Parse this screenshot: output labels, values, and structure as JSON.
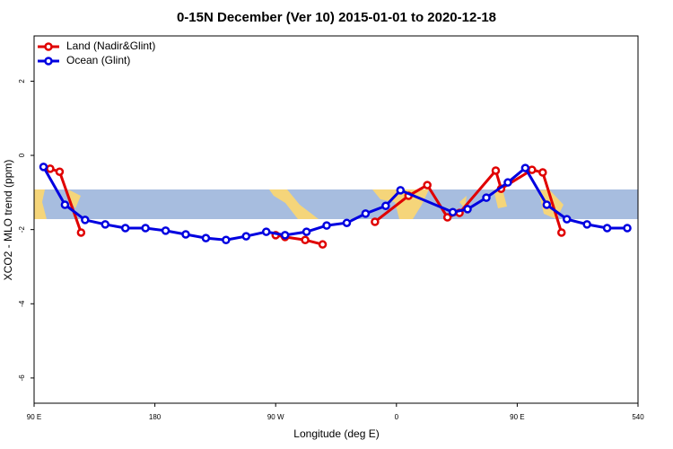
{
  "chart_data": {
    "type": "line",
    "title": "0-15N December (Ver 10)   2015-01-01 to 2020-12-18",
    "x_label": "Longitude (deg E)",
    "y_label": "XCO2 - MLO trend (ppm)",
    "xlim": [
      90,
      540
    ],
    "ylim": [
      -6.68,
      3.22
    ],
    "xticks": [
      {
        "value": 90,
        "label": "90 E"
      },
      180,
      {
        "value": 270,
        "label": "90 W"
      },
      {
        "value": 360,
        "label": "0"
      },
      {
        "value": 450,
        "label": "90 E"
      },
      540
    ],
    "yticks": [
      -6,
      -4,
      -2,
      0,
      2
    ],
    "legend": "top-left",
    "series": [
      {
        "name": "Land (Nadir&Glint)",
        "color": "#e00000",
        "x": [
          102,
          109,
          125,
          null,
          270,
          277,
          292,
          305,
          null,
          344,
          369,
          383,
          398,
          407,
          434,
          438,
          461,
          469,
          483
        ],
        "values": [
          -0.36,
          -0.44,
          -2.08,
          null,
          -2.15,
          -2.2,
          -2.28,
          -2.4,
          null,
          -1.79,
          -1.09,
          -0.8,
          -1.67,
          -1.55,
          -0.41,
          -0.9,
          -0.39,
          -0.46,
          -2.08
        ]
      },
      {
        "name": "Ocean (Glint)",
        "color": "#0000e0",
        "x": [
          97,
          113,
          128,
          143,
          158,
          173,
          188,
          203,
          218,
          233,
          248,
          263,
          277,
          293,
          308,
          323,
          337,
          352,
          363,
          402,
          413,
          427,
          443,
          456,
          472,
          487,
          502,
          517,
          532
        ],
        "values": [
          -0.31,
          -1.33,
          -1.74,
          -1.86,
          -1.96,
          -1.96,
          -2.03,
          -2.13,
          -2.23,
          -2.28,
          -2.18,
          -2.06,
          -2.15,
          -2.06,
          -1.89,
          -1.82,
          -1.57,
          -1.36,
          -0.94,
          -1.53,
          -1.45,
          -1.14,
          -0.73,
          -0.34,
          -1.33,
          -1.72,
          -1.86,
          -1.96,
          -1.96
        ]
      }
    ]
  }
}
